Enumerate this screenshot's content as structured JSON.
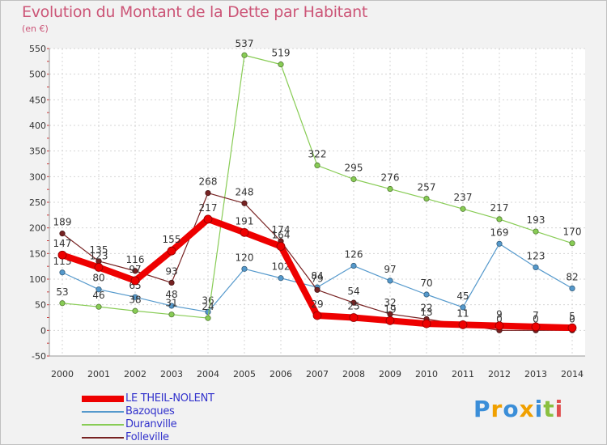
{
  "header": {
    "title": "Evolution du Montant de la Dette par Habitant",
    "subtitle": "(en €)"
  },
  "logo": {
    "letters": [
      "P",
      "r",
      "o",
      "x",
      "i",
      "t",
      "i"
    ],
    "colors": [
      "#3b8ed8",
      "#f0a000",
      "#3b8ed8",
      "#f0a000",
      "#3b8ed8",
      "#8ac040",
      "#e05050"
    ]
  },
  "chart_data": {
    "type": "line",
    "title": "Evolution du Montant de la Dette par Habitant",
    "subtitle": "(en €)",
    "xlabel": "",
    "ylabel": "",
    "x": [
      "2000",
      "2001",
      "2002",
      "2003",
      "2004",
      "2005",
      "2006",
      "2007",
      "2008",
      "2009",
      "2010",
      "2011",
      "2012",
      "2013",
      "2014"
    ],
    "ylim": [
      -50,
      550
    ],
    "yticks": [
      -50,
      0,
      50,
      100,
      150,
      200,
      250,
      300,
      350,
      400,
      450,
      500,
      550
    ],
    "grid": true,
    "legend_position": "bottom-left",
    "series": [
      {
        "name": "Bazoques",
        "color": "#5599cc",
        "values": [
          113,
          80,
          65,
          48,
          36,
          120,
          102,
          84,
          126,
          97,
          70,
          45,
          169,
          123,
          82
        ]
      },
      {
        "name": "Duranville",
        "color": "#88cc55",
        "values": [
          53,
          46,
          38,
          31,
          24,
          537,
          519,
          322,
          295,
          276,
          257,
          237,
          217,
          193,
          170
        ]
      },
      {
        "name": "Folleville",
        "color": "#772222",
        "values": [
          189,
          135,
          116,
          93,
          268,
          248,
          174,
          79,
          54,
          32,
          22,
          11,
          0,
          0,
          0
        ]
      },
      {
        "name": "LE THEIL-NOLENT",
        "color": "#ee0000",
        "values": [
          147,
          123,
          97,
          155,
          217,
          191,
          164,
          29,
          25,
          19,
          13,
          11,
          9,
          7,
          5
        ]
      }
    ],
    "legend_order": [
      "LE THEIL-NOLENT",
      "Bazoques",
      "Duranville",
      "Folleville"
    ]
  }
}
